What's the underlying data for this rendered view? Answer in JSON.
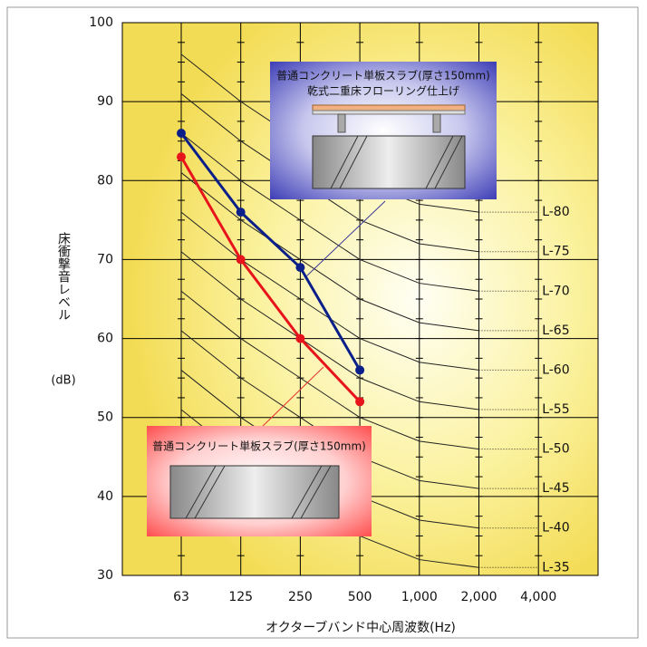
{
  "chart_data": {
    "type": "line",
    "y_label": [
      "床衝撃音レベル",
      "(dB)"
    ],
    "x_label": "オクターブバンド中心周波数(Hz)",
    "categories": [
      "63",
      "125",
      "250",
      "500",
      "1,000",
      "2,000",
      "4,000"
    ],
    "ylim": [
      30,
      100
    ],
    "yticks": [
      30,
      40,
      50,
      60,
      70,
      80,
      90,
      100
    ],
    "grid": true,
    "series": [
      {
        "name": "普通コンクリート単板スラブ(厚さ150mm) 乾式二重床フローリング仕上げ",
        "color": "#0b1f8a",
        "values": [
          86,
          76,
          69,
          56,
          null,
          null,
          null
        ]
      },
      {
        "name": "普通コンクリート単板スラブ(厚さ150mm)",
        "color": "#e8141b",
        "values": [
          83,
          70,
          60,
          52,
          null,
          null,
          null
        ]
      }
    ],
    "reference_curves": [
      {
        "name": "L-35",
        "values": [
          51,
          45,
          40,
          35,
          32,
          31,
          31
        ]
      },
      {
        "name": "L-40",
        "values": [
          56,
          50,
          45,
          40,
          37,
          36,
          36
        ]
      },
      {
        "name": "L-45",
        "values": [
          61,
          55,
          50,
          45,
          42,
          41,
          41
        ]
      },
      {
        "name": "L-50",
        "values": [
          66,
          60,
          55,
          50,
          47,
          46,
          46
        ]
      },
      {
        "name": "L-55",
        "values": [
          71,
          65,
          60,
          55,
          52,
          51,
          51
        ]
      },
      {
        "name": "L-60",
        "values": [
          76,
          70,
          65,
          60,
          57,
          56,
          56
        ]
      },
      {
        "name": "L-65",
        "values": [
          81,
          75,
          70,
          65,
          62,
          61,
          61
        ]
      },
      {
        "name": "L-70",
        "values": [
          86,
          80,
          75,
          70,
          67,
          66,
          66
        ]
      },
      {
        "name": "L-75",
        "values": [
          91,
          85,
          80,
          75,
          72,
          71,
          71
        ]
      },
      {
        "name": "L-80",
        "values": [
          96,
          90,
          85,
          80,
          77,
          76,
          76
        ]
      }
    ],
    "annotations": [
      {
        "lines": [
          "普通コンクリート単板スラブ(厚さ150mm)",
          "乾式二重床フローリング仕上げ"
        ]
      },
      {
        "lines": [
          "普通コンクリート単板スラブ(厚さ150mm)"
        ]
      }
    ]
  }
}
